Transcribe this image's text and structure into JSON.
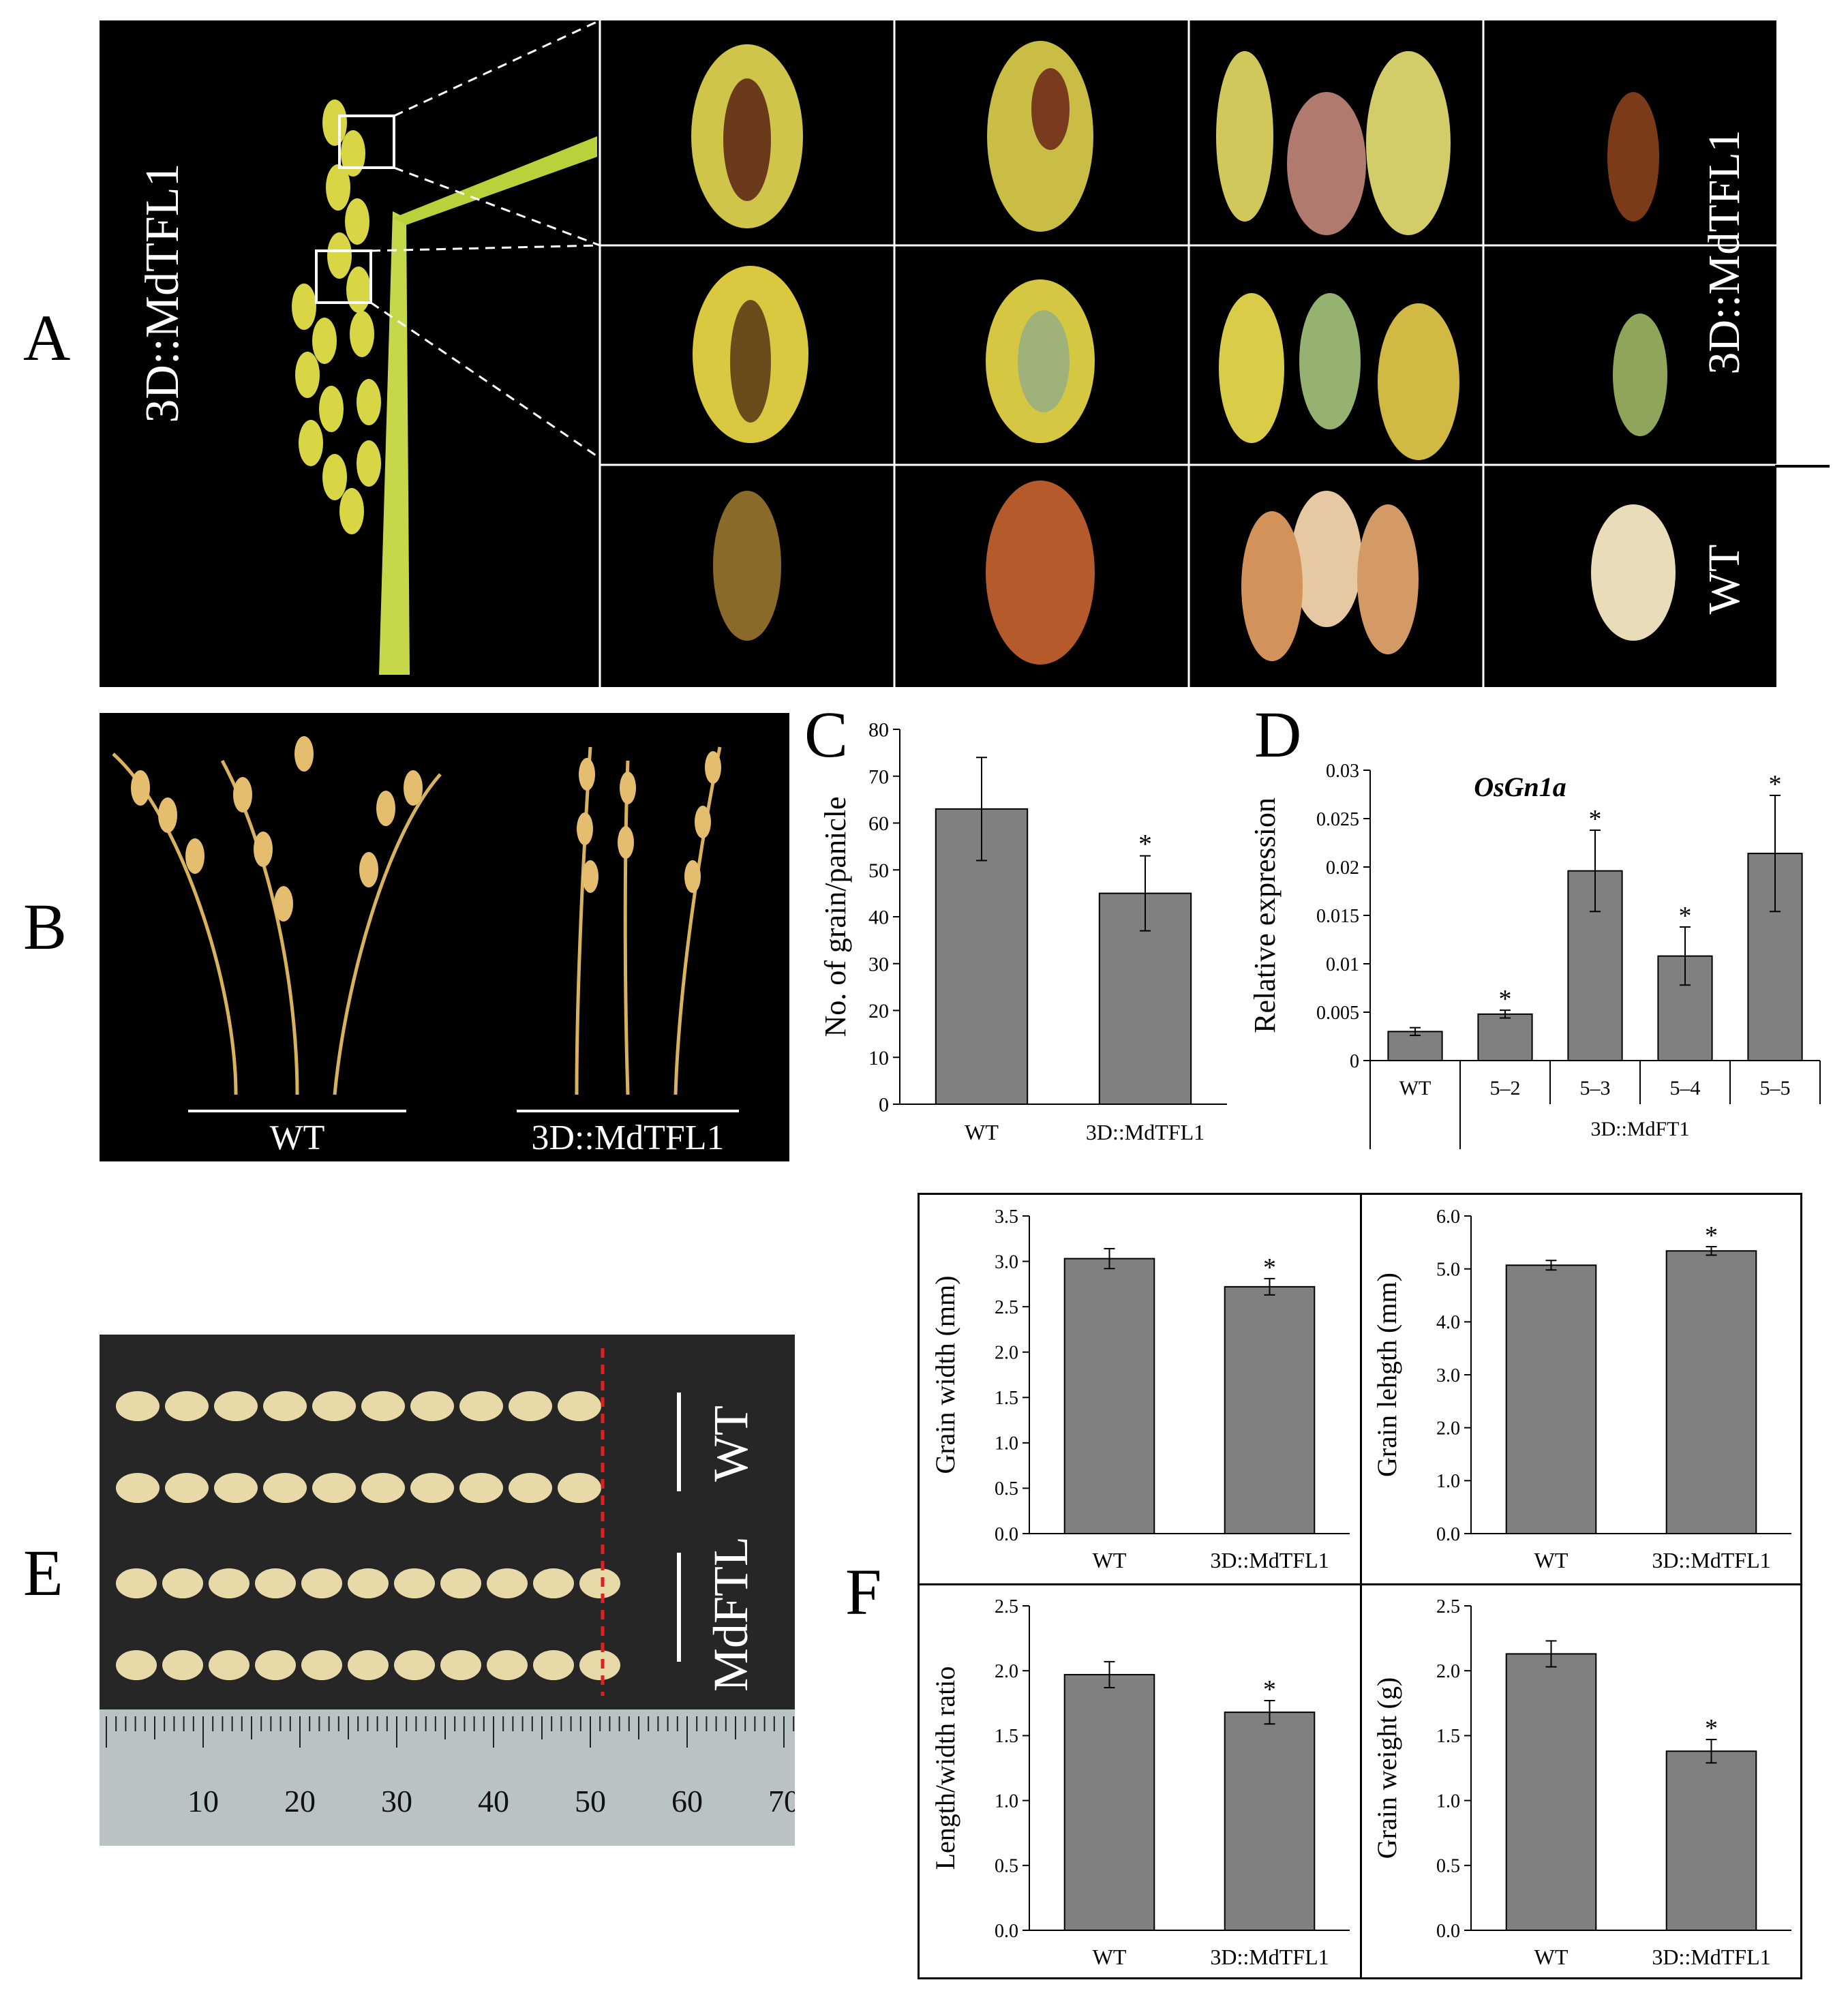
{
  "panels": {
    "A": "A",
    "B": "B",
    "C": "C",
    "D": "D",
    "E": "E",
    "F": "F"
  },
  "panel_a": {
    "side_label": "3D::MdTFL1",
    "row_labels": {
      "transgenic": "3D::MdTFL1",
      "wt": "WT"
    }
  },
  "panel_b": {
    "labels": {
      "wt": "WT",
      "transgenic": "3D::MdTFL1"
    }
  },
  "panel_e": {
    "row_labels": {
      "wt": "WT",
      "transgenic": "MdFTL"
    },
    "ruler_ticks": [
      "10",
      "20",
      "30",
      "40",
      "50",
      "60",
      "70"
    ]
  },
  "colors": {
    "bar": "#808080",
    "background_photo": "#000000",
    "grain": "#e8d9a8",
    "ruler": "#b9c2c4",
    "dashed_marker": "#e02020"
  },
  "chart_data": [
    {
      "id": "C",
      "type": "bar",
      "categories": [
        "WT",
        "3D::MdTFL1"
      ],
      "values": [
        63,
        45
      ],
      "errors": [
        11,
        8
      ],
      "significance": [
        "",
        "*"
      ],
      "ylabel": "No. of grain/panicle",
      "ylim": [
        0,
        80
      ],
      "yticks": [
        "0",
        "10",
        "20",
        "30",
        "40",
        "50",
        "60",
        "70",
        "80"
      ]
    },
    {
      "id": "D",
      "type": "bar",
      "title": "OsGn1a",
      "categories": [
        "WT",
        "5–2",
        "5–3",
        "5–4",
        "5–5"
      ],
      "group_label": "3D::MdFT1",
      "values": [
        0.003,
        0.0048,
        0.0196,
        0.0108,
        0.0214
      ],
      "errors": [
        0.0004,
        0.0004,
        0.0042,
        0.003,
        0.006
      ],
      "significance": [
        "",
        "*",
        "*",
        "*",
        "*"
      ],
      "ylabel": "Relative expression",
      "ylim": [
        0,
        0.03
      ],
      "yticks": [
        "0",
        "0.005",
        "0.01",
        "0.015",
        "0.02",
        "0.025",
        "0.03"
      ]
    },
    {
      "id": "F1",
      "type": "bar",
      "categories": [
        "WT",
        "3D::MdTFL1"
      ],
      "values": [
        3.03,
        2.72
      ],
      "errors": [
        0.11,
        0.09
      ],
      "significance": [
        "",
        "*"
      ],
      "ylabel": "Grain width (mm)",
      "ylim": [
        0,
        3.5
      ],
      "yticks": [
        "0.0",
        "0.5",
        "1.0",
        "1.5",
        "2.0",
        "2.5",
        "3.0",
        "3.5"
      ]
    },
    {
      "id": "F2",
      "type": "bar",
      "categories": [
        "WT",
        "3D::MdTFL1"
      ],
      "values": [
        5.07,
        5.34
      ],
      "errors": [
        0.09,
        0.08
      ],
      "significance": [
        "",
        "*"
      ],
      "ylabel": "Grain lehgth (mm)",
      "ylim": [
        0,
        6
      ],
      "yticks": [
        "0.0",
        "1.0",
        "2.0",
        "3.0",
        "4.0",
        "5.0",
        "6.0"
      ]
    },
    {
      "id": "F3",
      "type": "bar",
      "categories": [
        "WT",
        "3D::MdTFL1"
      ],
      "values": [
        1.97,
        1.68
      ],
      "errors": [
        0.1,
        0.09
      ],
      "significance": [
        "",
        "*"
      ],
      "ylabel": "Length/width ratio",
      "ylim": [
        0,
        2.5
      ],
      "yticks": [
        "0.0",
        "0.5",
        "1.0",
        "1.5",
        "2.0",
        "2.5"
      ]
    },
    {
      "id": "F4",
      "type": "bar",
      "categories": [
        "WT",
        "3D::MdTFL1"
      ],
      "values": [
        2.13,
        1.38
      ],
      "errors": [
        0.1,
        0.09
      ],
      "significance": [
        "",
        "*"
      ],
      "ylabel": "Grain weight (g)",
      "ylim": [
        0,
        2.5
      ],
      "yticks": [
        "0.0",
        "0.5",
        "1.0",
        "1.5",
        "2.0",
        "2.5"
      ]
    }
  ]
}
